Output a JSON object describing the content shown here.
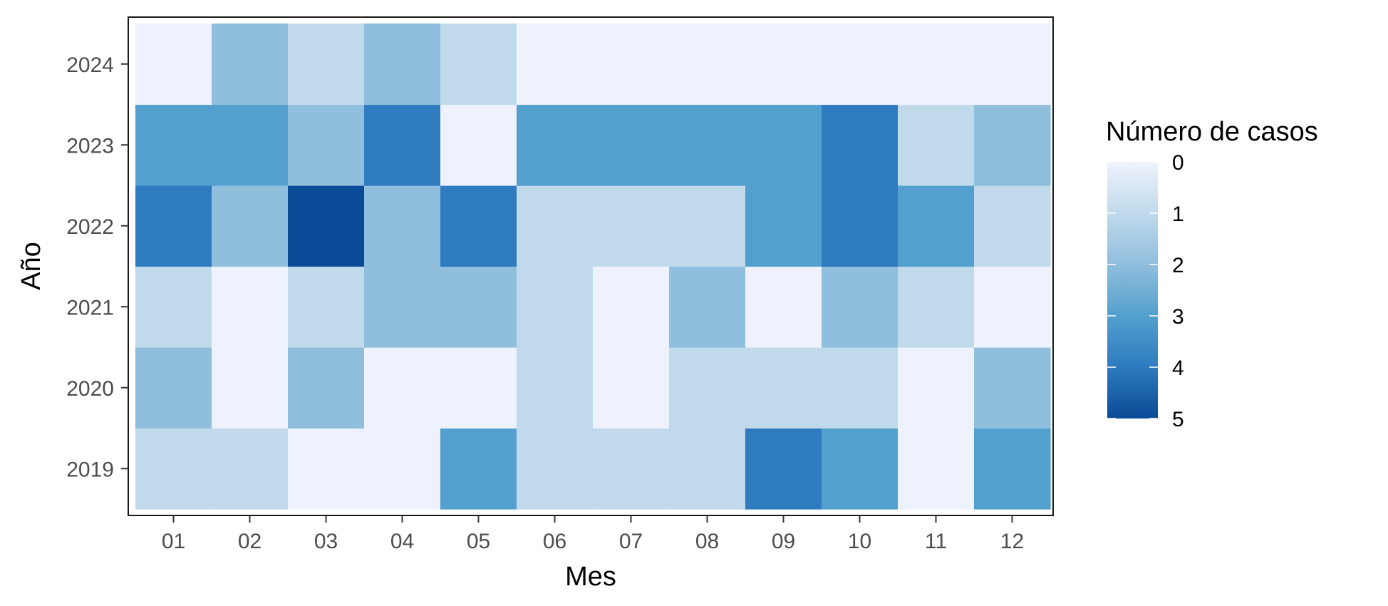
{
  "chart_data": {
    "type": "heatmap",
    "xlabel": "Mes",
    "ylabel": "Año",
    "x_categories": [
      "01",
      "02",
      "03",
      "04",
      "05",
      "06",
      "07",
      "08",
      "09",
      "10",
      "11",
      "12"
    ],
    "y_categories": [
      "2019",
      "2020",
      "2021",
      "2022",
      "2023",
      "2024"
    ],
    "values": [
      [
        1,
        1,
        0,
        0,
        3,
        1,
        1,
        1,
        4,
        3,
        0,
        3
      ],
      [
        2,
        0,
        2,
        0,
        0,
        1,
        0,
        1,
        1,
        1,
        0,
        2
      ],
      [
        1,
        0,
        1,
        2,
        2,
        1,
        0,
        2,
        0,
        2,
        1,
        0
      ],
      [
        4,
        2,
        5,
        2,
        4,
        1,
        1,
        1,
        3,
        4,
        3,
        1
      ],
      [
        3,
        3,
        2,
        4,
        0,
        3,
        3,
        3,
        3,
        4,
        1,
        2
      ],
      [
        0,
        2,
        1,
        2,
        1,
        0,
        0,
        0,
        0,
        0,
        0,
        0
      ]
    ],
    "legend": {
      "title": "Número de casos",
      "breaks": [
        "0",
        "1",
        "2",
        "3",
        "4",
        "5"
      ],
      "range": [
        0,
        5
      ],
      "position": "right"
    },
    "colors": {
      "0": "#eef2fd",
      "1": "#c0daec",
      "2": "#90bedd",
      "3": "#539fce",
      "4": "#2e7bbf",
      "5": "#0a4a96"
    }
  }
}
